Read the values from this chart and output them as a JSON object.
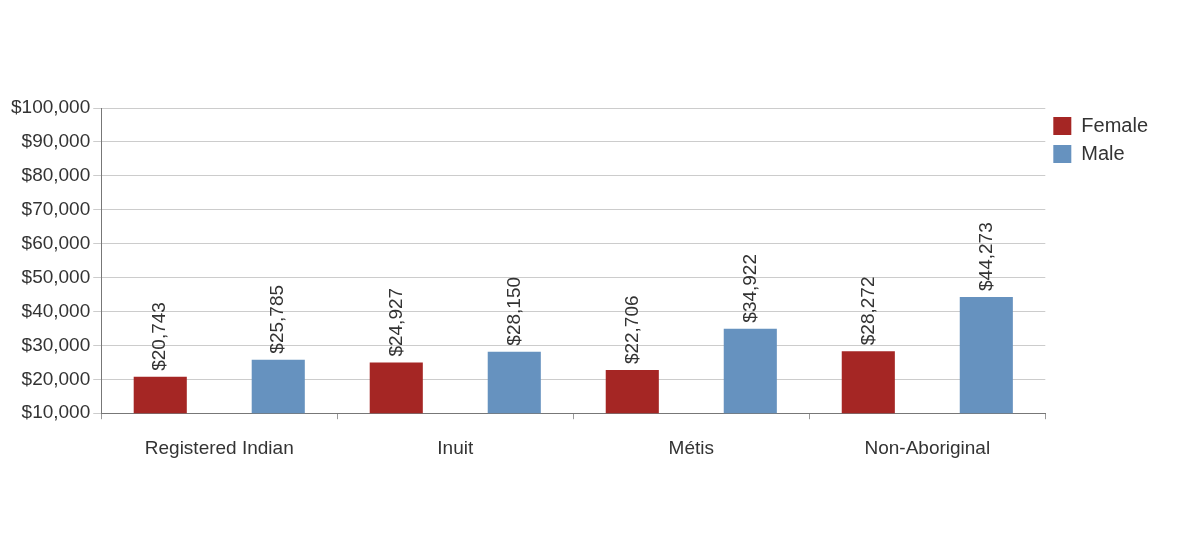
{
  "chart_data": {
    "type": "bar",
    "categories": [
      "Registered Indian",
      "Inuit",
      "Métis",
      "Non-Aboriginal"
    ],
    "series": [
      {
        "name": "Female",
        "color": "#a52624",
        "values": [
          20743,
          24927,
          22706,
          28272
        ],
        "value_labels": [
          "$20,743",
          "$24,927",
          "$22,706",
          "$28,272"
        ]
      },
      {
        "name": "Male",
        "color": "#6692bf",
        "values": [
          25785,
          28150,
          34922,
          44273
        ],
        "value_labels": [
          "$25,785",
          "$28,150",
          "$34,922",
          "$44,273"
        ]
      }
    ],
    "ylim": [
      10000,
      100000
    ],
    "yticks": [
      {
        "value": 10000,
        "label": "$10,000"
      },
      {
        "value": 20000,
        "label": "$20,000"
      },
      {
        "value": 30000,
        "label": "$30,000"
      },
      {
        "value": 40000,
        "label": "$40,000"
      },
      {
        "value": 50000,
        "label": "$50,000"
      },
      {
        "value": 60000,
        "label": "$60,000"
      },
      {
        "value": 70000,
        "label": "$70,000"
      },
      {
        "value": 80000,
        "label": "$80,000"
      },
      {
        "value": 90000,
        "label": "$90,000"
      },
      {
        "value": 100000,
        "label": "$100,000"
      }
    ],
    "grid": "y",
    "legend": "top right"
  }
}
